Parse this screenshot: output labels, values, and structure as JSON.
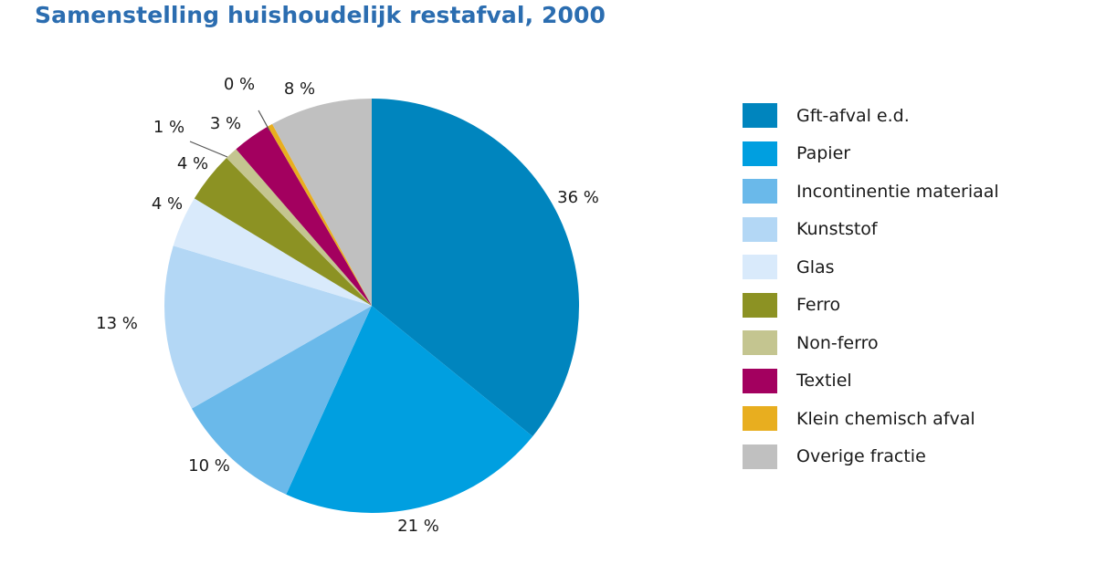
{
  "title": "Samenstelling huishoudelijk restafval, 2000",
  "chart_data": {
    "type": "pie",
    "start": "12 o'clock, clockwise",
    "slices": [
      {
        "name": "Gft-afval e.d.",
        "value": 36,
        "label": "36 %",
        "color": "#0085be"
      },
      {
        "name": "Papier",
        "value": 21,
        "label": "21 %",
        "color": "#009fe0"
      },
      {
        "name": "Incontinentie materiaal",
        "value": 10,
        "label": "10 %",
        "color": "#6ab9ea"
      },
      {
        "name": "Kunststof",
        "value": 13,
        "label": "13 %",
        "color": "#b3d7f5"
      },
      {
        "name": "Glas",
        "value": 4,
        "label": "4 %",
        "color": "#d9eafb"
      },
      {
        "name": "Ferro",
        "value": 4,
        "label": "4 %",
        "color": "#8c9223"
      },
      {
        "name": "Non-ferro",
        "value": 1,
        "label": "1 %",
        "color": "#c4c590"
      },
      {
        "name": "Textiel",
        "value": 3,
        "label": "3 %",
        "color": "#a3005f"
      },
      {
        "name": "Klein chemisch afval",
        "value": 0.4,
        "label": "0 %",
        "color": "#e8ae1f"
      },
      {
        "name": "Overige fractie",
        "value": 8,
        "label": "8 %",
        "color": "#c0c0c0"
      }
    ],
    "legend_position": "right"
  }
}
